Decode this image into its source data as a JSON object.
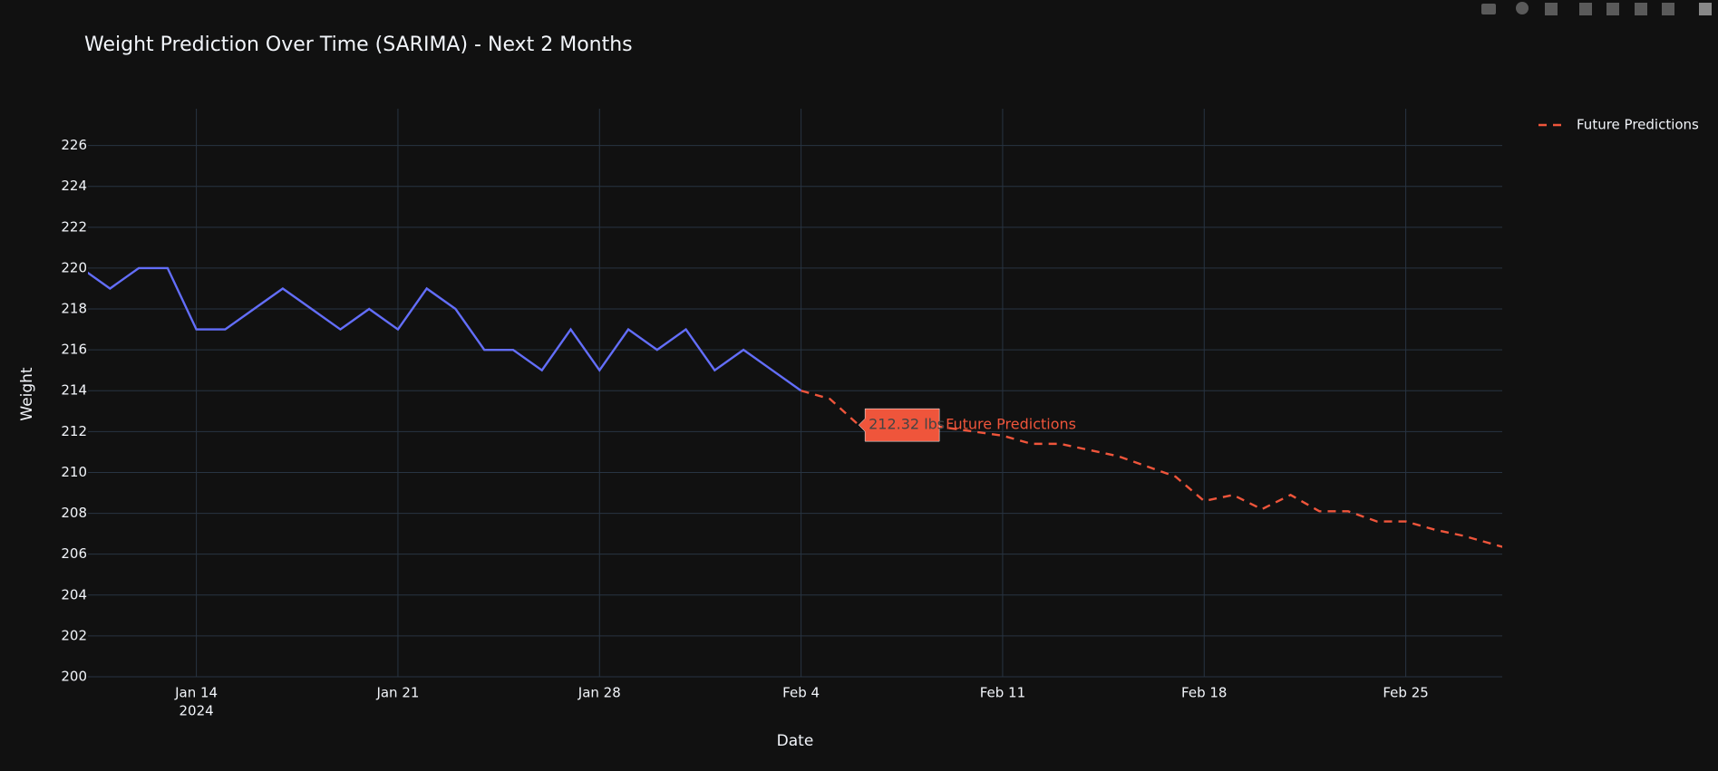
{
  "chart_data": {
    "type": "line",
    "title": "Weight Prediction Over Time (SARIMA) - Next 2 Months",
    "x_label": "Date",
    "y_label": "Weight",
    "series": [
      {
        "color": "#636efa",
        "dash": "solid",
        "x": [
          "2024-01-10",
          "2024-01-11",
          "2024-01-12",
          "2024-01-13",
          "2024-01-14",
          "2024-01-15",
          "2024-01-16",
          "2024-01-17",
          "2024-01-18",
          "2024-01-19",
          "2024-01-20",
          "2024-01-21",
          "2024-01-22",
          "2024-01-23",
          "2024-01-24",
          "2024-01-25",
          "2024-01-26",
          "2024-01-27",
          "2024-01-28",
          "2024-01-29",
          "2024-01-30",
          "2024-01-31",
          "2024-02-01",
          "2024-02-02",
          "2024-02-03",
          "2024-02-04"
        ],
        "values": [
          220,
          219,
          220,
          220,
          217,
          217,
          218,
          219,
          218,
          217,
          218,
          217,
          219,
          218,
          216,
          216,
          215,
          217,
          215,
          217,
          216,
          217,
          215,
          216,
          215,
          214
        ]
      },
      {
        "name": "Future Predictions",
        "color": "#ef553b",
        "dash": "dash",
        "x": [
          "2024-02-04",
          "2024-02-05",
          "2024-02-06",
          "2024-02-07",
          "2024-02-08",
          "2024-02-09",
          "2024-02-10",
          "2024-02-11",
          "2024-02-12",
          "2024-02-13",
          "2024-02-14",
          "2024-02-15",
          "2024-02-16",
          "2024-02-17",
          "2024-02-18",
          "2024-02-19",
          "2024-02-20",
          "2024-02-21",
          "2024-02-22",
          "2024-02-23",
          "2024-02-24",
          "2024-02-25",
          "2024-02-26",
          "2024-02-27",
          "2024-02-28",
          "2024-02-29"
        ],
        "values": [
          214,
          213.6,
          212.32,
          212.5,
          212.4,
          212.2,
          212,
          211.8,
          211.4,
          211.4,
          211.1,
          210.8,
          210.3,
          209.8,
          208.6,
          208.9,
          208.2,
          208.9,
          208.1,
          208.1,
          207.6,
          207.6,
          207.2,
          206.9,
          206.5,
          206.1
        ]
      }
    ],
    "hover": {
      "x": "2024-02-06",
      "value": 212.32,
      "label": "212.32 lbs"
    },
    "xlim": [
      "2024-01-10T05:37",
      "2024-02-28T08:24"
    ],
    "xticks": [
      {
        "value": "2024-01-14",
        "label": "Jan 14"
      },
      {
        "value": "2024-01-21",
        "label": "Jan 21"
      },
      {
        "value": "2024-01-28",
        "label": "Jan 28"
      },
      {
        "value": "2024-02-04",
        "label": "Feb 4"
      },
      {
        "value": "2024-02-11",
        "label": "Feb 11"
      },
      {
        "value": "2024-02-18",
        "label": "Feb 18"
      },
      {
        "value": "2024-02-25",
        "label": "Feb 25"
      }
    ],
    "x_year_label": "2024",
    "ylim": [
      200,
      227.8
    ],
    "yticks": [
      200,
      202,
      204,
      206,
      208,
      210,
      212,
      214,
      216,
      218,
      220,
      222,
      224,
      226
    ],
    "grid": true,
    "legend": "top-right"
  }
}
